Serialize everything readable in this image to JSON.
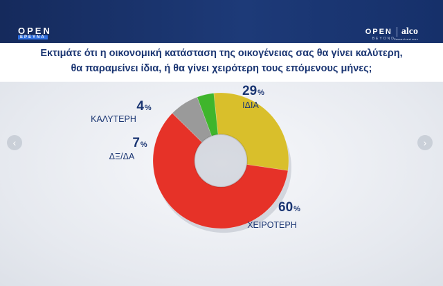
{
  "header": {
    "left_logo": {
      "main": "OPEN",
      "sub": "ΕΡΕΥΝΑ"
    },
    "right_logo": {
      "main": "OPEN",
      "sub": "BEYOND",
      "partner": "alco",
      "partner_sub": "Research and more"
    }
  },
  "question": {
    "line1": "Εκτιμάτε ότι η οικονομική κατάσταση της οικογένειας σας θα γίνει καλύτερη,",
    "line2": "θα παραμείνει ίδια, ή θα γίνει χειρότερη τους επόμενους μήνες;"
  },
  "nav": {
    "prev_icon": "chevron-left-icon",
    "next_icon": "chevron-right-icon",
    "prev_glyph": "‹",
    "next_glyph": "›"
  },
  "chart_data": {
    "type": "pie",
    "donut": true,
    "unit": "%",
    "slices": [
      {
        "label": "ΙΔΙΑ",
        "value": 29,
        "color": "#d9bf2b"
      },
      {
        "label": "ΧΕΙΡΟΤΕΡΗ",
        "value": 60,
        "color": "#e63228"
      },
      {
        "label": "ΔΞ/ΔΑ",
        "value": 7,
        "color": "#9a9a9a"
      },
      {
        "label": "ΚΑΛΥΤΕΡΗ",
        "value": 4,
        "color": "#3fb52c"
      }
    ]
  }
}
